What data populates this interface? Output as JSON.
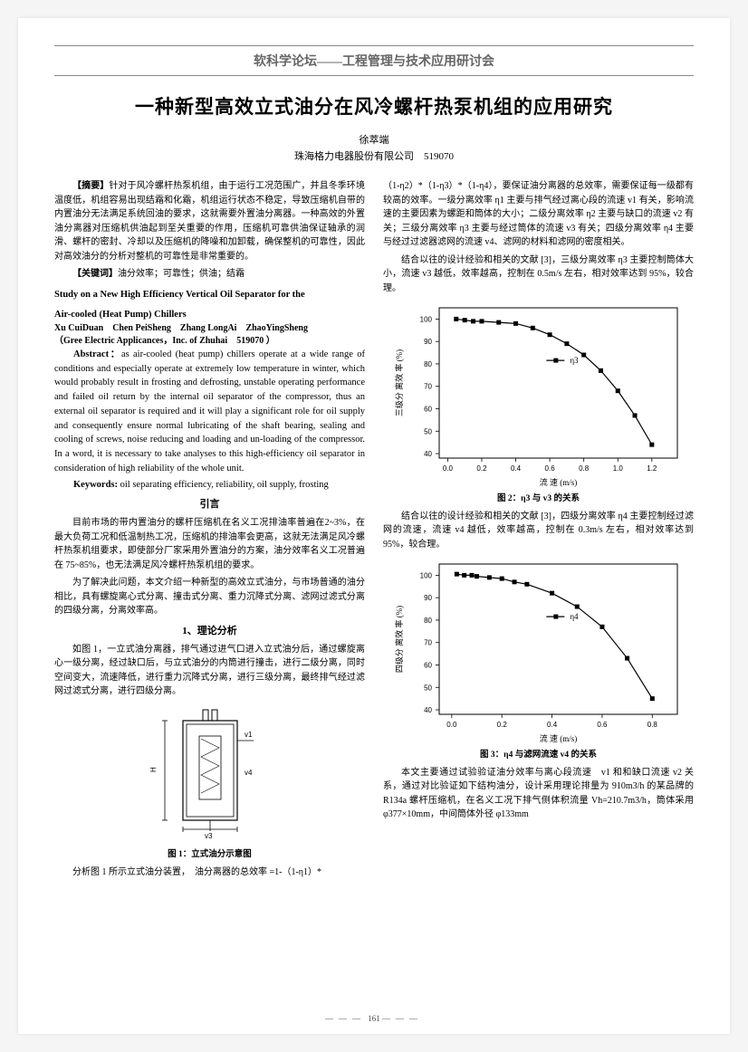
{
  "journal_header": "软科学论坛——工程管理与技术应用研讨会",
  "title_cn": "一种新型高效立式油分在风冷螺杆热泵机组的应用研究",
  "author_cn": "徐萃端",
  "affiliation_cn": "珠海格力电器股份有限公司　519070",
  "abstract_label": "【摘要】",
  "abstract_cn": "针对于风冷螺杆热泵机组，由于运行工况范围广，并且冬季环境温度低，机组容易出现结霜和化霜，机组运行状态不稳定，导致压缩机自带的内置油分无法满足系统回油的要求，这就需要外置油分离器。一种高效的外置油分离器对压缩机供油起到至关重要的作用，压缩机可靠供油保证轴承的润滑、螺杆的密封、冷却以及压缩机的降噪和加卸载，确保整机的可靠性，因此对高效油分的分析对整机的可靠性是非常重要的。",
  "keywords_label": "【关键词】",
  "keywords_cn": "油分效率；可靠性；供油；结霜",
  "title_en_l1": "Study on a New High Efficiency Vertical Oil Separator for the",
  "title_en_l2": "Air-cooled (Heat Pump) Chillers",
  "authors_en": "Xu CuiDuan　Chen PeiSheng　Zhang LongAi　ZhaoYingSheng",
  "affiliation_en": "（Gree Electric Applicances，Inc. of Zhuhai　519070 ）",
  "abstract_en_label": "Abstract：",
  "abstract_en": "as air-cooled (heat pump) chillers operate at a wide range of conditions and especially operate at extremely low temperature in winter, which would probably result in frosting and defrosting, unstable operating performance and failed oil return by the internal oil separator of the compressor, thus an external oil separator is required and it will play a significant role for oil supply and consequently ensure normal lubricating of the shaft bearing, sealing and cooling of screws, noise reducing and loading and un-loading of the compressor. In a word, it is necessary to take analyses to this high-efficiency oil separator in consideration of high reliability of the whole unit.",
  "keywords_en_label": "Keywords:",
  "keywords_en": "oil separating efficiency, reliability, oil supply, frosting",
  "sec_intro": "引言",
  "intro_p1": "目前市场的带内置油分的螺杆压缩机在名义工况排油率普遍在2~3%，在最大负荷工况和低温制热工况，压缩机的排油率会更高，这就无法满足风冷螺杆热泵机组要求，即使部分厂家采用外置油分的方案，油分效率名义工况普遍在 75~85%，也无法满足风冷螺杆热泵机组的要求。",
  "intro_p2": "为了解决此问题，本文介绍一种新型的高效立式油分，与市场普通的油分相比，具有螺旋离心式分离、撞击式分离、重力沉降式分离、滤网过滤式分离的四级分离，分离效率高。",
  "sec1": "1、理论分析",
  "sec1_p1": "如图 1，一立式油分离器，排气通过进气口进入立式油分后，通过螺旋离心一级分离，经过缺口后，与立式油分的内筒进行撞击，进行二级分离，同时空间变大，流速降低，进行重力沉降式分离，进行三级分离，最终排气经过滤网过滤式分离，进行四级分离。",
  "fig1_caption": "图 1：立式油分示意图",
  "fig1_sub": "分析图 1 所示立式油分装置，　油分离器的总效率 =1-（1-η1）*",
  "col2_p1": "（1-η2）*（1-η3）*（1-η4），要保证油分离器的总效率，需要保证每一级都有较高的效率。一级分离效率 η1 主要与排气经过离心段的流速 v1 有关，影响流速的主要因素为螺距和筒体的大小；二级分离效率 η2 主要与缺口的流速 v2 有关；三级分离效率 η3 主要与经过筒体的流速 v3 有关；四级分离效率 η4 主要与经过过滤器滤网的流速 v4、滤网的材料和滤网的密度相关。",
  "col2_p2": "结合以往的设计经验和相关的文献 [3]，三级分离效率 η3 主要控制筒体大小，流速 v3 越低，效率越高，控制在 0.5m/s 左右，相对效率达到 95%，较合理。",
  "fig2_caption": "图 2：η3 与 v3 的关系",
  "col2_p3": "结合以往的设计经验和相关的文献 [3]，四级分离效率 η4 主要控制经过滤网的流速，流速 v4 越低，效率越高，控制在 0.3m/s 左右，相对效率达到 95%，较合理。",
  "fig3_caption": "图 3：η4 与滤网流速 v4 的关系",
  "col2_p4": "本文主要通过试验验证油分效率与离心段流速　v1 和和缺口流速 v2 关系，通过对比验证如下结构油分，设计采用理论排量为 910m3/h 的某品牌的 R134a 螺杆压缩机，在名义工况下排气侧体积流量 Vh=210.7m3/h，筒体采用 φ377×10mm，中间筒体外径 φ133mm",
  "chart2": {
    "ylabel": "三级分 离效 率 (%)",
    "xlabel": "流 速 (m/s)",
    "legend": "η3",
    "xlim": [
      -0.05,
      1.35
    ],
    "ylim": [
      38,
      105
    ],
    "xticks": [
      0.0,
      0.2,
      0.4,
      0.6,
      0.8,
      1.0,
      1.2
    ],
    "yticks": [
      40,
      50,
      60,
      70,
      80,
      90,
      100
    ],
    "x": [
      0.05,
      0.1,
      0.15,
      0.2,
      0.3,
      0.4,
      0.5,
      0.6,
      0.7,
      0.8,
      0.9,
      1.0,
      1.1,
      1.2
    ],
    "y": [
      100,
      99.5,
      99,
      99,
      98.5,
      98,
      96,
      93,
      89,
      84,
      77,
      68,
      57,
      44
    ]
  },
  "chart3": {
    "ylabel": "四级分 离效 率 (%)",
    "xlabel": "流 速 (m/s)",
    "legend": "η4",
    "xlim": [
      -0.05,
      0.9
    ],
    "ylim": [
      38,
      105
    ],
    "xticks": [
      0.0,
      0.2,
      0.4,
      0.6,
      0.8
    ],
    "yticks": [
      40,
      50,
      60,
      70,
      80,
      90,
      100
    ],
    "x": [
      0.02,
      0.05,
      0.08,
      0.1,
      0.15,
      0.2,
      0.25,
      0.3,
      0.4,
      0.5,
      0.6,
      0.7,
      0.8
    ],
    "y": [
      100.5,
      100,
      100,
      99.5,
      99,
      98.5,
      97,
      96,
      92,
      86,
      77,
      63,
      45
    ]
  },
  "page_number": "161"
}
